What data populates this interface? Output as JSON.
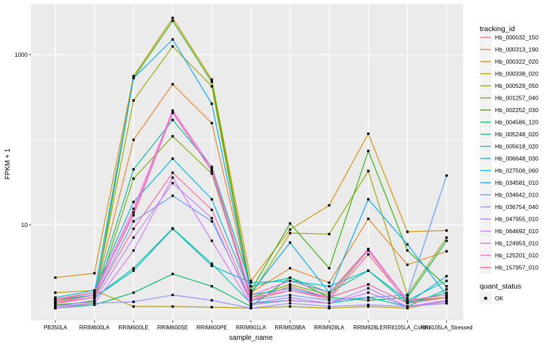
{
  "figure": {
    "background": "#FFFFFF",
    "panel_background": "#EBEBEB",
    "gridline_color": "#FFFFFF",
    "tick_color": "#333333",
    "tick_label_color": "#4D4D4D",
    "point_color": "#000000",
    "legend_key_fill": "#F2F2F2"
  },
  "legend": {
    "tracking_title": "tracking_id",
    "quant_title": "quant_status",
    "quant_items": [
      {
        "label": "OK",
        "marker": "black-square"
      }
    ]
  },
  "chart_data": {
    "type": "line",
    "title": "",
    "xlabel": "sample_name",
    "ylabel": "FPKM + 1",
    "y_scale": "log10",
    "ylim": [
      0.75,
      3600
    ],
    "y_ticks_labeled": [
      10,
      1000
    ],
    "y_major_gridlines": [
      10,
      1000
    ],
    "y_minor_gridlines": [
      1,
      100
    ],
    "grid": "on",
    "legend_position": "right",
    "point_marker": "black-square",
    "x_categories": [
      "PB350LA",
      "RRIM600LA",
      "RRIM600LE",
      "RRIM600SE",
      "RRIM600PE",
      "RRIM901LA",
      "RRIM928BA",
      "RRIM928LA",
      "RRIM928LE",
      "RRII105LA_Control",
      "RRII105LA_Stressed"
    ],
    "series": [
      {
        "name": "Hb_000032_150",
        "color": "#F8766D",
        "values": [
          1.35,
          1.6,
          13,
          210,
          44,
          1.3,
          1.7,
          1.35,
          4.5,
          1.25,
          1.4
        ]
      },
      {
        "name": "Hb_000313_190",
        "color": "#E88526",
        "values": [
          1.25,
          1.5,
          100,
          450,
          157,
          1.6,
          3.1,
          2.1,
          11.8,
          3.4,
          4.9
        ]
      },
      {
        "name": "Hb_000322_020",
        "color": "#D39200",
        "values": [
          2.4,
          2.7,
          560,
          2700,
          510,
          2.2,
          8.8,
          17,
          118,
          8.3,
          8.6
        ]
      },
      {
        "name": "Hb_000338_020",
        "color": "#BB9D00",
        "values": [
          1.6,
          1.7,
          1.1,
          1.1,
          1.08,
          1.05,
          1.1,
          1.05,
          1.1,
          1.05,
          1.3
        ]
      },
      {
        "name": "Hb_000529_050",
        "color": "#9DA700",
        "values": [
          1.2,
          1.4,
          290,
          1250,
          425,
          1.5,
          8.0,
          7.8,
          43,
          1.5,
          7.1
        ]
      },
      {
        "name": "Hb_001257_040",
        "color": "#75AF00",
        "values": [
          1.1,
          1.3,
          35,
          110,
          40,
          1.4,
          2.0,
          1.5,
          5.2,
          1.3,
          1.4
        ]
      },
      {
        "name": "Hb_002252_030",
        "color": "#2BB600",
        "values": [
          1.15,
          1.25,
          530,
          2500,
          480,
          1.7,
          10.4,
          3.1,
          74,
          5.0,
          1.9
        ]
      },
      {
        "name": "Hb_004586_120",
        "color": "#00BC59",
        "values": [
          1.05,
          1.15,
          1.6,
          2.65,
          1.9,
          1.1,
          2.4,
          1.4,
          1.3,
          1.4,
          6.5
        ]
      },
      {
        "name": "Hb_005248_020",
        "color": "#00C08E",
        "values": [
          1.3,
          1.5,
          45,
          171,
          48,
          1.9,
          2.4,
          1.6,
          2.9,
          1.2,
          1.6
        ]
      },
      {
        "name": "Hb_005618_020",
        "color": "#00C1A7",
        "values": [
          1.2,
          1.4,
          3.1,
          9.1,
          3.5,
          1.2,
          1.3,
          1.2,
          1.4,
          1.1,
          1.75
        ]
      },
      {
        "name": "Hb_006648_030",
        "color": "#00BFC4",
        "values": [
          1.2,
          1.4,
          2.9,
          9.0,
          3.3,
          2.1,
          2.2,
          1.9,
          2.9,
          1.3,
          2.2
        ]
      },
      {
        "name": "Hb_027506_060",
        "color": "#00B8E5",
        "values": [
          1.4,
          1.7,
          18.6,
          60,
          20,
          1.5,
          1.8,
          1.4,
          2.0,
          1.2,
          2.5
        ]
      },
      {
        "name": "Hb_034581_010",
        "color": "#00ACFC",
        "values": [
          1.3,
          1.6,
          530,
          1510,
          265,
          1.6,
          6.2,
          1.6,
          20,
          5.9,
          1.5
        ]
      },
      {
        "name": "Hb_034642_010",
        "color": "#619CFF",
        "values": [
          1.2,
          1.4,
          11,
          22,
          11,
          1.3,
          1.5,
          1.3,
          1.4,
          1.5,
          38
        ]
      },
      {
        "name": "Hb_036754_040",
        "color": "#9590FF",
        "values": [
          1.1,
          1.2,
          1.25,
          1.5,
          1.3,
          1.05,
          1.2,
          1.1,
          1.15,
          1.1,
          1.2
        ]
      },
      {
        "name": "Hb_047955_010",
        "color": "#B983FF",
        "values": [
          1.1,
          1.3,
          7.1,
          31,
          12,
          1.2,
          1.4,
          1.2,
          1.8,
          1.1,
          1.3
        ]
      },
      {
        "name": "Hb_064692_010",
        "color": "#D575FE",
        "values": [
          1.05,
          1.2,
          5.0,
          36,
          6.5,
          1.15,
          1.3,
          1.2,
          1.6,
          1.1,
          1.25
        ]
      },
      {
        "name": "Hb_124953_010",
        "color": "#EF67EB",
        "values": [
          1.2,
          1.5,
          14,
          207,
          43,
          1.4,
          1.7,
          1.4,
          5.0,
          1.2,
          1.4
        ]
      },
      {
        "name": "Hb_125201_010",
        "color": "#FD61D3",
        "values": [
          1.3,
          1.6,
          15.4,
          220,
          47,
          1.5,
          2.2,
          1.6,
          5.2,
          1.3,
          1.5
        ]
      },
      {
        "name": "Hb_157957_010",
        "color": "#FF689F",
        "values": [
          1.2,
          1.4,
          9.0,
          41,
          15,
          1.3,
          1.9,
          1.4,
          2.0,
          1.2,
          1.4
        ]
      }
    ]
  }
}
